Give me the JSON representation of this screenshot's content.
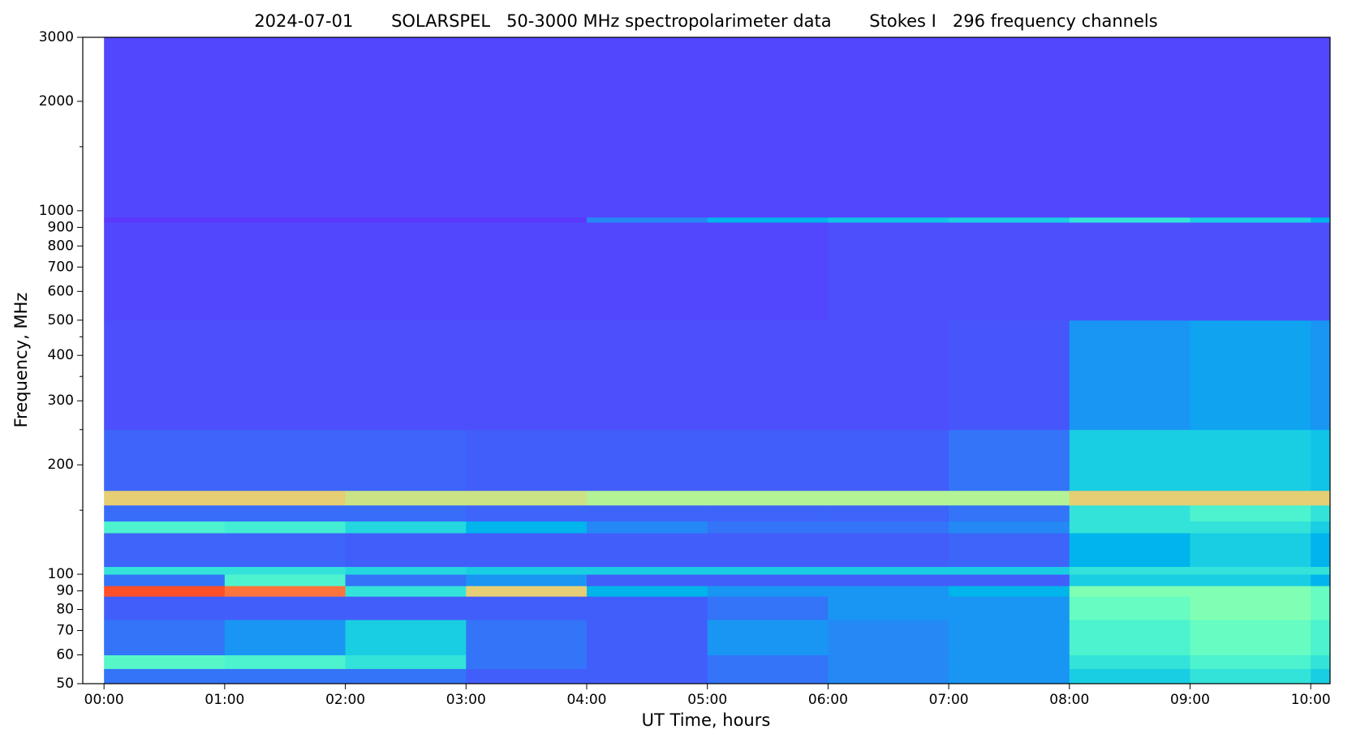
{
  "chart_data": {
    "type": "spectrogram",
    "title": "2024-07-01       SOLARSPEL   50-3000 MHz spectropolarimeter data       Stokes I   296 frequency channels",
    "x_label": "UT Time, hours",
    "y_label": "Frequency, MHz",
    "colormap": "rainbow",
    "y_scale": "log",
    "xlim": [
      -0.176,
      10.16
    ],
    "ylim": [
      50,
      3000
    ],
    "xticks": [
      {
        "value": 0,
        "label": "00:00"
      },
      {
        "value": 1,
        "label": "01:00"
      },
      {
        "value": 2,
        "label": "02:00"
      },
      {
        "value": 3,
        "label": "03:00"
      },
      {
        "value": 4,
        "label": "04:00"
      },
      {
        "value": 5,
        "label": "05:00"
      },
      {
        "value": 6,
        "label": "06:00"
      },
      {
        "value": 7,
        "label": "07:00"
      },
      {
        "value": 8,
        "label": "08:00"
      },
      {
        "value": 9,
        "label": "09:00"
      },
      {
        "value": 10,
        "label": "10:00"
      }
    ],
    "yticks": [
      50,
      60,
      70,
      80,
      90,
      100,
      200,
      300,
      400,
      500,
      600,
      700,
      800,
      900,
      1000,
      2000,
      3000
    ],
    "yminor": [
      150,
      250,
      350,
      450,
      1500
    ],
    "xbins": [
      0,
      1,
      2,
      3,
      4,
      5,
      6,
      7,
      8,
      9,
      10,
      10.16
    ],
    "rows": [
      {
        "f": [
          50,
          55
        ],
        "values": [
          0.15,
          0.15,
          0.15,
          0.12,
          0.12,
          0.15,
          0.18,
          0.2,
          0.3,
          0.35,
          0.3
        ]
      },
      {
        "f": [
          55,
          60
        ],
        "values": [
          0.42,
          0.4,
          0.35,
          0.15,
          0.12,
          0.15,
          0.18,
          0.2,
          0.35,
          0.4,
          0.35
        ]
      },
      {
        "f": [
          60,
          75
        ],
        "values": [
          0.15,
          0.2,
          0.3,
          0.15,
          0.12,
          0.2,
          0.18,
          0.2,
          0.4,
          0.45,
          0.4
        ]
      },
      {
        "f": [
          75,
          87
        ],
        "values": [
          0.12,
          0.12,
          0.12,
          0.12,
          0.12,
          0.15,
          0.2,
          0.2,
          0.45,
          0.5,
          0.45
        ]
      },
      {
        "f": [
          87,
          93
        ],
        "values": [
          0.9,
          0.85,
          0.35,
          0.7,
          0.25,
          0.2,
          0.2,
          0.25,
          0.5,
          0.5,
          0.45
        ]
      },
      {
        "f": [
          93,
          100
        ],
        "values": [
          0.15,
          0.4,
          0.15,
          0.2,
          0.12,
          0.12,
          0.12,
          0.12,
          0.3,
          0.3,
          0.25
        ]
      },
      {
        "f": [
          100,
          105
        ],
        "values": [
          0.35,
          0.35,
          0.32,
          0.3,
          0.3,
          0.3,
          0.3,
          0.3,
          0.35,
          0.35,
          0.35
        ]
      },
      {
        "f": [
          105,
          130
        ],
        "values": [
          0.13,
          0.13,
          0.12,
          0.12,
          0.12,
          0.12,
          0.12,
          0.13,
          0.25,
          0.3,
          0.25
        ]
      },
      {
        "f": [
          130,
          140
        ],
        "values": [
          0.4,
          0.38,
          0.32,
          0.25,
          0.18,
          0.15,
          0.15,
          0.18,
          0.35,
          0.35,
          0.3
        ]
      },
      {
        "f": [
          140,
          155
        ],
        "values": [
          0.14,
          0.14,
          0.14,
          0.13,
          0.13,
          0.13,
          0.13,
          0.15,
          0.35,
          0.4,
          0.35
        ]
      },
      {
        "f": [
          155,
          170
        ],
        "values": [
          0.7,
          0.7,
          0.65,
          0.65,
          0.6,
          0.6,
          0.6,
          0.6,
          0.7,
          0.7,
          0.7
        ]
      },
      {
        "f": [
          170,
          250
        ],
        "values": [
          0.13,
          0.13,
          0.13,
          0.12,
          0.12,
          0.12,
          0.12,
          0.15,
          0.3,
          0.3,
          0.28
        ]
      },
      {
        "f": [
          250,
          500
        ],
        "values": [
          0.1,
          0.1,
          0.1,
          0.1,
          0.1,
          0.1,
          0.1,
          0.11,
          0.2,
          0.22,
          0.2
        ]
      },
      {
        "f": [
          500,
          930
        ],
        "values": [
          0.09,
          0.09,
          0.09,
          0.09,
          0.09,
          0.09,
          0.1,
          0.1,
          0.1,
          0.1,
          0.1
        ]
      },
      {
        "f": [
          930,
          960
        ],
        "values": [
          0.07,
          0.07,
          0.07,
          0.07,
          0.18,
          0.25,
          0.28,
          0.3,
          0.35,
          0.3,
          0.25
        ]
      },
      {
        "f": [
          960,
          3000
        ],
        "values": [
          0.09,
          0.09,
          0.09,
          0.09,
          0.09,
          0.09,
          0.09,
          0.09,
          0.09,
          0.09,
          0.09
        ]
      }
    ]
  }
}
